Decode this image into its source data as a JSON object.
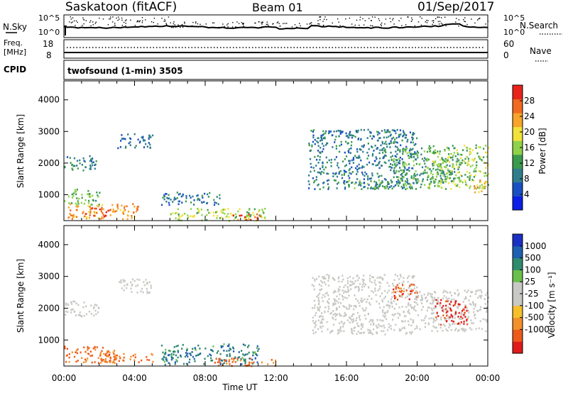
{
  "header": {
    "station": "Saskatoon (fitACF)",
    "beam": "Beam 01",
    "date": "01/Sep/2017"
  },
  "aux_labels": {
    "nsky": "N.Sky",
    "nsearch": "N.Search",
    "freq_line1": "Freq.",
    "freq_line2": "[MHz]",
    "nave": "Nave",
    "cpid": "CPID",
    "cpid_text": "twofsound (1-min) 3505"
  },
  "colors": {
    "power_scale": [
      "#0b1fe6",
      "#1a4fc4",
      "#2f7d8c",
      "#3a9a4e",
      "#8fd24a",
      "#f1e23a",
      "#f7a42a",
      "#f06a1f",
      "#e8231a"
    ],
    "velocity_scale": [
      "#e01a1a",
      "#ee5a1a",
      "#f3902a",
      "#f6c02a",
      "#c8c8c4",
      "#c8c8c4",
      "#6ac04a",
      "#2f8a6e",
      "#1f5fb0",
      "#1a2fc4"
    ]
  },
  "chart_data": [
    {
      "type": "heatmap",
      "title": "",
      "xlabel": "Time UT",
      "ylabel": "Slant Range [km]",
      "colorbar_label": "Power [dB]",
      "xlim": [
        0,
        24
      ],
      "ylim": [
        180,
        4600
      ],
      "x_ticks": [
        "00:00",
        "04:00",
        "08:00",
        "12:00",
        "16:00",
        "20:00",
        "00:00"
      ],
      "y_ticks": [
        1000,
        2000,
        3000,
        4000
      ],
      "colorbar_range": [
        0,
        32
      ],
      "colorbar_ticks": [
        4,
        8,
        12,
        16,
        20,
        24,
        28
      ],
      "features": [
        {
          "t": [
            0.0,
            1.8
          ],
          "range": [
            1750,
            2250
          ],
          "value": 10
        },
        {
          "t": [
            0.0,
            2.0
          ],
          "range": [
            700,
            1200
          ],
          "value": 14
        },
        {
          "t": [
            0.2,
            4.2
          ],
          "range": [
            250,
            750
          ],
          "value": 24
        },
        {
          "t": [
            1.2,
            2.6
          ],
          "range": [
            330,
            620
          ],
          "value": 29
        },
        {
          "t": [
            3.0,
            5.0
          ],
          "range": [
            2500,
            2950
          ],
          "value": 7
        },
        {
          "t": [
            5.5,
            9.0
          ],
          "range": [
            700,
            1100
          ],
          "value": 9
        },
        {
          "t": [
            6.0,
            11.5
          ],
          "range": [
            200,
            600
          ],
          "value": 17
        },
        {
          "t": [
            9.5,
            11.2
          ],
          "range": [
            220,
            420
          ],
          "value": 28
        },
        {
          "t": [
            13.8,
            20.0
          ],
          "range": [
            1200,
            3100
          ],
          "value": 9
        },
        {
          "t": [
            16.0,
            20.5
          ],
          "range": [
            1200,
            1500
          ],
          "value": 13
        },
        {
          "t": [
            18.5,
            22.5
          ],
          "range": [
            1400,
            2500
          ],
          "value": 12
        },
        {
          "t": [
            20.5,
            24.0
          ],
          "range": [
            1200,
            2600
          ],
          "value": 16
        },
        {
          "t": [
            23.2,
            24.0
          ],
          "range": [
            1100,
            1500
          ],
          "value": 23
        }
      ]
    },
    {
      "type": "heatmap",
      "title": "",
      "xlabel": "Time UT",
      "ylabel": "Slant Range [km]",
      "colorbar_label": "Velocity [m s⁻¹]",
      "xlim": [
        0,
        24
      ],
      "ylim": [
        180,
        4600
      ],
      "x_ticks": [
        "00:00",
        "04:00",
        "08:00",
        "12:00",
        "16:00",
        "20:00",
        "00:00"
      ],
      "y_ticks": [
        1000,
        2000,
        3000,
        4000
      ],
      "colorbar_ticks": [
        "1000",
        "500",
        "100",
        "25",
        "-25",
        "-100",
        "-500",
        "-1000"
      ],
      "features": [
        {
          "t": [
            0.0,
            2.0
          ],
          "range": [
            1750,
            2250
          ],
          "value": 0
        },
        {
          "t": [
            0.0,
            3.0
          ],
          "range": [
            300,
            850
          ],
          "value": -150
        },
        {
          "t": [
            2.0,
            5.0
          ],
          "range": [
            300,
            600
          ],
          "value": -120
        },
        {
          "t": [
            3.0,
            5.0
          ],
          "range": [
            2500,
            2950
          ],
          "value": 0
        },
        {
          "t": [
            5.5,
            11.0
          ],
          "range": [
            250,
            900
          ],
          "value": 60
        },
        {
          "t": [
            8.5,
            12.0
          ],
          "range": [
            200,
            450
          ],
          "value": -130
        },
        {
          "t": [
            14.0,
            20.0
          ],
          "range": [
            1200,
            3100
          ],
          "value": 0
        },
        {
          "t": [
            18.5,
            20.0
          ],
          "range": [
            2300,
            2800
          ],
          "value": -200
        },
        {
          "t": [
            20.0,
            24.0
          ],
          "range": [
            1300,
            2600
          ],
          "value": 0
        },
        {
          "t": [
            21.0,
            22.8
          ],
          "range": [
            1500,
            2300
          ],
          "value": -800
        }
      ]
    },
    {
      "type": "line",
      "title": "",
      "ylabel_left": "N.Sky",
      "ylabel_right": "N.Search",
      "yticks_left": [
        "10^5",
        "10^0"
      ],
      "yticks_right": [
        "10^5",
        "10^0"
      ],
      "xlim": [
        0,
        24
      ]
    },
    {
      "type": "line",
      "title": "",
      "ylabel_left": "Freq. [MHz]",
      "ylabel_right": "Nave",
      "yticks_left": [
        "18",
        "8"
      ],
      "yticks_right": [
        "60",
        "0"
      ],
      "xlim": [
        0,
        24
      ]
    }
  ]
}
